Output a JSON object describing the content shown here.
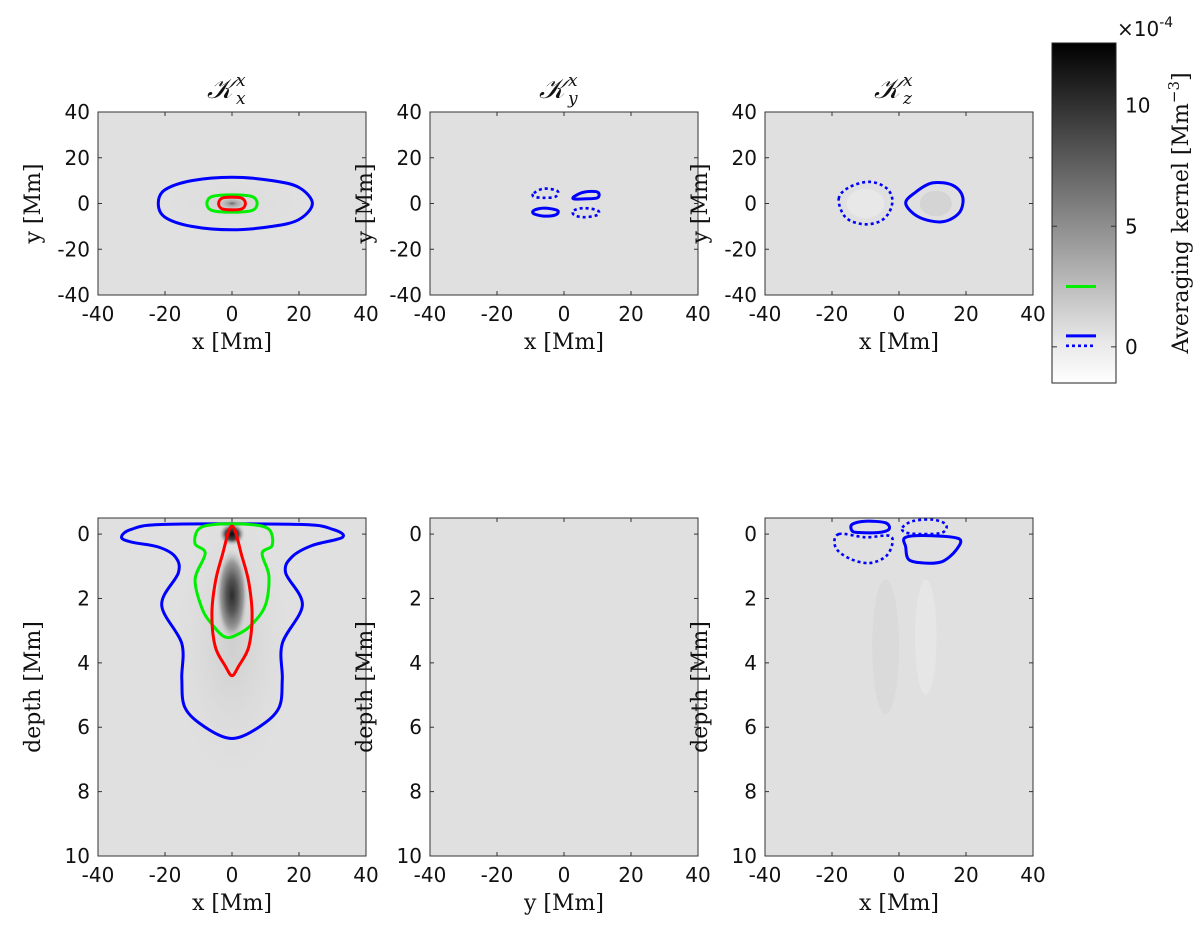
{
  "chart_data": [
    {
      "type": "heatmap",
      "panel": "top-left",
      "title_symbol": "𝒦",
      "title_sup": "x",
      "title_sub": "x",
      "xlabel": "x [Mm]",
      "ylabel": "y [Mm]",
      "xlim": [
        -40,
        40
      ],
      "ylim": [
        -40,
        40
      ],
      "xticks": [
        "-40",
        "-20",
        "0",
        "20",
        "40"
      ],
      "yticks": [
        "40",
        "20",
        "0",
        "-20",
        "-40"
      ],
      "contours": [
        {
          "color": "#0000ff",
          "style": "solid",
          "points": [
            [
              -22,
              0
            ],
            [
              -20,
              6
            ],
            [
              -12,
              10
            ],
            [
              0,
              11.5
            ],
            [
              12,
              10
            ],
            [
              20,
              7
            ],
            [
              24,
              0
            ],
            [
              20,
              -7
            ],
            [
              12,
              -10
            ],
            [
              0,
              -11.5
            ],
            [
              -12,
              -10
            ],
            [
              -20,
              -6
            ]
          ]
        },
        {
          "color": "#00ee00",
          "style": "solid",
          "points": [
            [
              -6,
              -3
            ],
            [
              -6,
              3
            ],
            [
              6,
              3
            ],
            [
              6,
              -3
            ]
          ]
        },
        {
          "color": "#ff0000",
          "style": "solid",
          "points": [
            [
              -4,
              0
            ],
            [
              -3,
              2.3
            ],
            [
              0,
              2.8
            ],
            [
              3,
              2.3
            ],
            [
              4,
              0
            ],
            [
              3,
              -2.3
            ],
            [
              0,
              -2.8
            ],
            [
              -3,
              -2.3
            ]
          ]
        }
      ]
    },
    {
      "type": "heatmap",
      "panel": "top-middle",
      "title_symbol": "𝒦",
      "title_sup": "x",
      "title_sub": "y",
      "xlabel": "x [Mm]",
      "ylabel": "y [Mm]",
      "xlim": [
        -40,
        40
      ],
      "ylim": [
        -40,
        40
      ],
      "xticks": [
        "-40",
        "-20",
        "0",
        "20",
        "40"
      ],
      "yticks": [
        "40",
        "20",
        "0",
        "-20",
        "-40"
      ],
      "contours": [
        {
          "color": "#0000ff",
          "style": "dotted",
          "points": [
            [
              -9,
              4.5
            ],
            [
              -6,
              6.5
            ],
            [
              -2,
              5.5
            ],
            [
              -2.5,
              3
            ],
            [
              -6,
              2.5
            ],
            [
              -9,
              3
            ]
          ]
        },
        {
          "color": "#0000ff",
          "style": "solid",
          "points": [
            [
              3,
              3
            ],
            [
              6,
              5
            ],
            [
              10,
              5
            ],
            [
              10,
              2.5
            ],
            [
              6,
              2
            ],
            [
              3,
              2
            ]
          ]
        },
        {
          "color": "#0000ff",
          "style": "solid",
          "points": [
            [
              -9,
              -3
            ],
            [
              -6,
              -2
            ],
            [
              -2,
              -3
            ],
            [
              -2.5,
              -5
            ],
            [
              -6,
              -5.5
            ],
            [
              -9,
              -4.5
            ]
          ]
        },
        {
          "color": "#0000ff",
          "style": "dotted",
          "points": [
            [
              3,
              -3
            ],
            [
              6,
              -2
            ],
            [
              10,
              -3
            ],
            [
              10,
              -5
            ],
            [
              6,
              -6
            ],
            [
              3,
              -5
            ]
          ]
        }
      ]
    },
    {
      "type": "heatmap",
      "panel": "top-right",
      "title_symbol": "𝒦",
      "title_sup": "x",
      "title_sub": "z",
      "xlabel": "x [Mm]",
      "ylabel": "y [Mm]",
      "xlim": [
        -40,
        40
      ],
      "ylim": [
        -40,
        40
      ],
      "xticks": [
        "-40",
        "-20",
        "0",
        "20",
        "40"
      ],
      "yticks": [
        "40",
        "20",
        "0",
        "-20",
        "-40"
      ],
      "contours": [
        {
          "color": "#0000ff",
          "style": "dotted",
          "points": [
            [
              -18,
              2
            ],
            [
              -15,
              7
            ],
            [
              -9,
              9.5
            ],
            [
              -4,
              7
            ],
            [
              -2,
              2
            ],
            [
              -3,
              -4
            ],
            [
              -6,
              -8
            ],
            [
              -11,
              -9
            ],
            [
              -16,
              -6
            ]
          ]
        },
        {
          "color": "#0000ff",
          "style": "solid",
          "points": [
            [
              2,
              0
            ],
            [
              5,
              5
            ],
            [
              10,
              9
            ],
            [
              16,
              8
            ],
            [
              19,
              3
            ],
            [
              18,
              -4
            ],
            [
              13,
              -8
            ],
            [
              6,
              -6
            ]
          ]
        }
      ]
    },
    {
      "type": "heatmap",
      "panel": "bottom-left",
      "xlabel": "x [Mm]",
      "ylabel": "depth [Mm]",
      "xlim": [
        -40,
        40
      ],
      "ylim": [
        -0.5,
        10
      ],
      "xticks": [
        "-40",
        "-20",
        "0",
        "20",
        "40"
      ],
      "yticks": [
        "0",
        "2",
        "4",
        "6",
        "8",
        "10"
      ],
      "contours": [
        {
          "color": "#0000ff",
          "style": "solid",
          "points": [
            [
              -33,
              0.1
            ],
            [
              -30,
              0.25
            ],
            [
              -22,
              0.4
            ],
            [
              -17,
              0.7
            ],
            [
              -16,
              1.2
            ],
            [
              -21,
              2.2
            ],
            [
              -15,
              3.4
            ],
            [
              -15,
              4.5
            ],
            [
              -14,
              5.4
            ],
            [
              -8,
              6.0
            ],
            [
              0,
              6.35
            ],
            [
              8,
              6.0
            ],
            [
              14,
              5.4
            ],
            [
              15,
              4.5
            ],
            [
              15,
              3.4
            ],
            [
              21,
              2.2
            ],
            [
              16,
              1.2
            ],
            [
              18,
              0.7
            ],
            [
              24,
              0.35
            ],
            [
              33,
              0.1
            ],
            [
              30,
              -0.15
            ],
            [
              20,
              -0.3
            ],
            [
              -20,
              -0.3
            ],
            [
              -30,
              -0.15
            ]
          ]
        },
        {
          "color": "#00ee00",
          "style": "solid",
          "points": [
            [
              -11,
              0.3
            ],
            [
              -10,
              -0.15
            ],
            [
              -5,
              -0.3
            ],
            [
              5,
              -0.3
            ],
            [
              11,
              -0.15
            ],
            [
              12,
              0.35
            ],
            [
              9,
              0.6
            ],
            [
              11,
              1.3
            ],
            [
              10,
              2.2
            ],
            [
              6,
              2.8
            ],
            [
              2,
              3.1
            ],
            [
              -2,
              3.2
            ],
            [
              -6,
              2.8
            ],
            [
              -9,
              2.3
            ],
            [
              -11,
              1.4
            ],
            [
              -8,
              0.6
            ]
          ]
        },
        {
          "color": "#ff0000",
          "style": "solid",
          "points": [
            [
              0,
              -0.25
            ],
            [
              -3,
              0.7
            ],
            [
              -5,
              1.5
            ],
            [
              -6,
              2.5
            ],
            [
              -5,
              3.5
            ],
            [
              -2,
              4.1
            ],
            [
              0,
              4.4
            ],
            [
              2,
              4.1
            ],
            [
              5,
              3.5
            ],
            [
              6,
              2.5
            ],
            [
              5,
              1.5
            ],
            [
              3,
              0.7
            ]
          ]
        }
      ]
    },
    {
      "type": "heatmap",
      "panel": "bottom-middle",
      "xlabel": "y [Mm]",
      "ylabel": "depth [Mm]",
      "xlim": [
        -40,
        40
      ],
      "ylim": [
        -0.5,
        10
      ],
      "xticks": [
        "-40",
        "-20",
        "0",
        "20",
        "40"
      ],
      "yticks": [
        "0",
        "2",
        "4",
        "6",
        "8",
        "10"
      ],
      "contours": []
    },
    {
      "type": "heatmap",
      "panel": "bottom-right",
      "xlabel": "x [Mm]",
      "ylabel": "depth [Mm]",
      "xlim": [
        -40,
        40
      ],
      "ylim": [
        -0.5,
        10
      ],
      "xticks": [
        "-40",
        "-20",
        "0",
        "20",
        "40"
      ],
      "yticks": [
        "0",
        "2",
        "4",
        "6",
        "8",
        "10"
      ],
      "contours": [
        {
          "color": "#0000ff",
          "style": "solid",
          "points": [
            [
              -14,
              -0.3
            ],
            [
              -10,
              -0.4
            ],
            [
              -4,
              -0.35
            ],
            [
              -3,
              -0.15
            ],
            [
              -6,
              -0.05
            ],
            [
              -12,
              -0.05
            ],
            [
              -14,
              -0.1
            ]
          ]
        },
        {
          "color": "#0000ff",
          "style": "dotted",
          "points": [
            [
              1,
              -0.2
            ],
            [
              4,
              -0.4
            ],
            [
              10,
              -0.45
            ],
            [
              14,
              -0.3
            ],
            [
              13,
              -0.05
            ],
            [
              7,
              0
            ],
            [
              2,
              -0.05
            ]
          ]
        },
        {
          "color": "#0000ff",
          "style": "dotted",
          "points": [
            [
              -18,
              0
            ],
            [
              -10,
              0.1
            ],
            [
              -3,
              0.05
            ],
            [
              -2,
              0.3
            ],
            [
              -4,
              0.7
            ],
            [
              -9,
              0.9
            ],
            [
              -15,
              0.75
            ],
            [
              -19,
              0.4
            ]
          ]
        },
        {
          "color": "#0000ff",
          "style": "solid",
          "points": [
            [
              2,
              0.1
            ],
            [
              10,
              0.05
            ],
            [
              18,
              0.15
            ],
            [
              17,
              0.5
            ],
            [
              13,
              0.85
            ],
            [
              8,
              0.9
            ],
            [
              3,
              0.8
            ],
            [
              2,
              0.4
            ]
          ]
        }
      ]
    }
  ],
  "colorbar": {
    "multiplier_base": "×10",
    "multiplier_exp": "-4",
    "label": "Averaging kernel [Mm",
    "label_exp": "−3",
    "label_end": "]",
    "range": [
      -1.5,
      12.6
    ],
    "ticks": [
      "10",
      "5",
      "0"
    ],
    "tick_values": [
      10,
      5,
      0
    ],
    "green_level": 2.5,
    "blue_level": 0
  }
}
